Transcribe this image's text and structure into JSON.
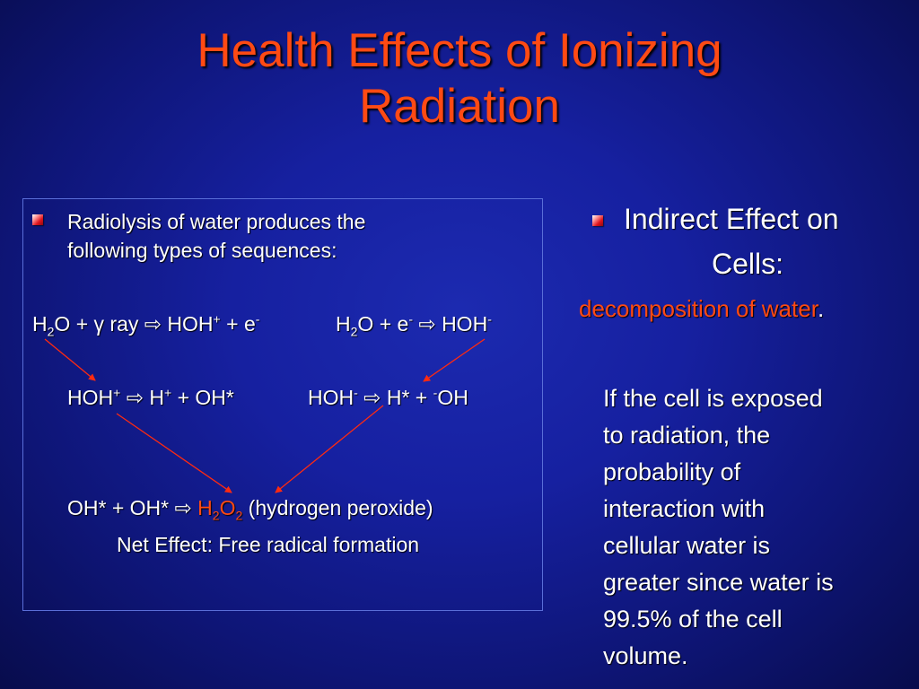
{
  "slide": {
    "title_line1": "Health Effects of Ionizing",
    "title_line2": "Radiation"
  },
  "left_panel": {
    "bullet_line1": "Radiolysis of water produces the",
    "bullet_line2": "following types of sequences:",
    "eq1a": {
      "h": "H",
      "sub2": "2",
      "rest": "O + ",
      "gamma": "γ",
      "ray": " ray ",
      "arrow": "⇨",
      "hoh": " HOH",
      "plus_sup": "+",
      "e": " + e",
      "minus_sup": "-"
    },
    "eq1b": {
      "h": "H",
      "sub2": "2",
      "rest": "O + e",
      "minus_sup": "-",
      "arrow": " ⇨ ",
      "hoh": "HOH",
      "minus_sup2": "-"
    },
    "eq2a": {
      "hoh": "HOH",
      "plus_sup": "+",
      "arrow": " ⇨ ",
      "h": "H",
      "plus_sup2": "+",
      "rest": " + OH*"
    },
    "eq2b": {
      "hoh": "HOH",
      "minus_sup": "-",
      "arrow": " ⇨ ",
      "h": "H* + ",
      "minus_sup2": "-",
      "oh": "OH"
    },
    "eq3": {
      "lhs": "OH* + OH* ",
      "arrow": "⇨",
      "h": " H",
      "sub2": "2",
      "o": "O",
      "sub2b": "2",
      "rest": " (hydrogen peroxide)"
    },
    "net_effect": "Net Effect:  Free radical formation"
  },
  "right_panel": {
    "heading_line1": "Indirect Effect on",
    "heading_line2": "Cells:",
    "subheading": "decomposition of water",
    "subheading_period": ".",
    "paragraph_lines": [
      "If the cell is exposed",
      "to radiation, the",
      "probability of",
      "interaction with",
      "cellular water is",
      "greater since water is",
      "99.5% of the cell",
      "volume."
    ]
  },
  "colors": {
    "background": "#1620a0",
    "title": "#ff4a14",
    "accent_red": "#ff4a14",
    "text": "#ffffff",
    "panel_border": "#5a6ed8"
  },
  "icons": [
    "bullet-square-icon",
    "right-arrow-icon"
  ]
}
